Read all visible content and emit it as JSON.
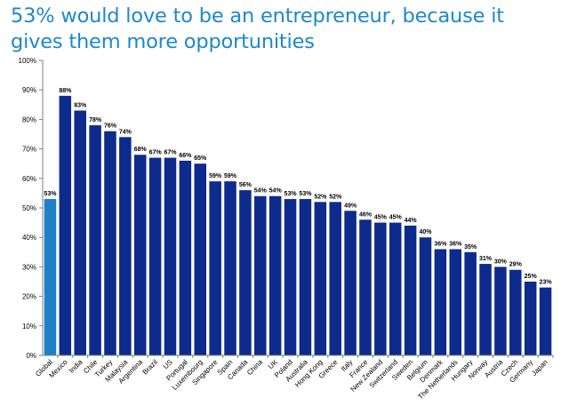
{
  "title": "53% would love to be an entrepreneur, because it gives them more opportunities",
  "colors": {
    "title": "#1e88cc",
    "highlight_bar": "#1f7fc9",
    "bar": "#0d2b8c",
    "axis": "#7f7f7f"
  },
  "chart_data": {
    "type": "bar",
    "title": "53% would love to be an entrepreneur, because it gives them more opportunities",
    "xlabel": "",
    "ylabel": "",
    "ylim": [
      0,
      100
    ],
    "y_ticks": [
      "0%",
      "10%",
      "20%",
      "30%",
      "40%",
      "50%",
      "60%",
      "70%",
      "80%",
      "90%",
      "100%"
    ],
    "y_tick_values": [
      0,
      10,
      20,
      30,
      40,
      50,
      60,
      70,
      80,
      90,
      100
    ],
    "grid": false,
    "highlight_category": "Global",
    "categories": [
      "Global",
      "Mexico",
      "India",
      "Chile",
      "Turkey",
      "Malaysia",
      "Argentina",
      "Brazil",
      "US",
      "Portugal",
      "Luxembourg",
      "Singapore",
      "Spain",
      "Canada",
      "China",
      "UK",
      "Poland",
      "Australia",
      "Hong Kong",
      "Greece",
      "Italy",
      "France",
      "New Zealand",
      "Switzerland",
      "Sweden",
      "Belgium",
      "Denmark",
      "The Netherlands",
      "Hungary",
      "Norway",
      "Austria",
      "Czech",
      "Germany",
      "Japan"
    ],
    "values": [
      53,
      88,
      83,
      78,
      76,
      74,
      68,
      67,
      67,
      66,
      65,
      59,
      59,
      56,
      54,
      54,
      53,
      53,
      52,
      52,
      49,
      46,
      45,
      45,
      44,
      40,
      36,
      36,
      35,
      31,
      30,
      29,
      25,
      23
    ],
    "data_labels": [
      "53%",
      "88%",
      "83%",
      "78%",
      "76%",
      "74%",
      "68%",
      "67%",
      "67%",
      "66%",
      "65%",
      "59%",
      "59%",
      "56%",
      "54%",
      "54%",
      "53%",
      "53%",
      "52%",
      "52%",
      "49%",
      "46%",
      "45%",
      "45%",
      "44%",
      "40%",
      "36%",
      "36%",
      "35%",
      "31%",
      "30%",
      "29%",
      "25%",
      "23%"
    ]
  }
}
